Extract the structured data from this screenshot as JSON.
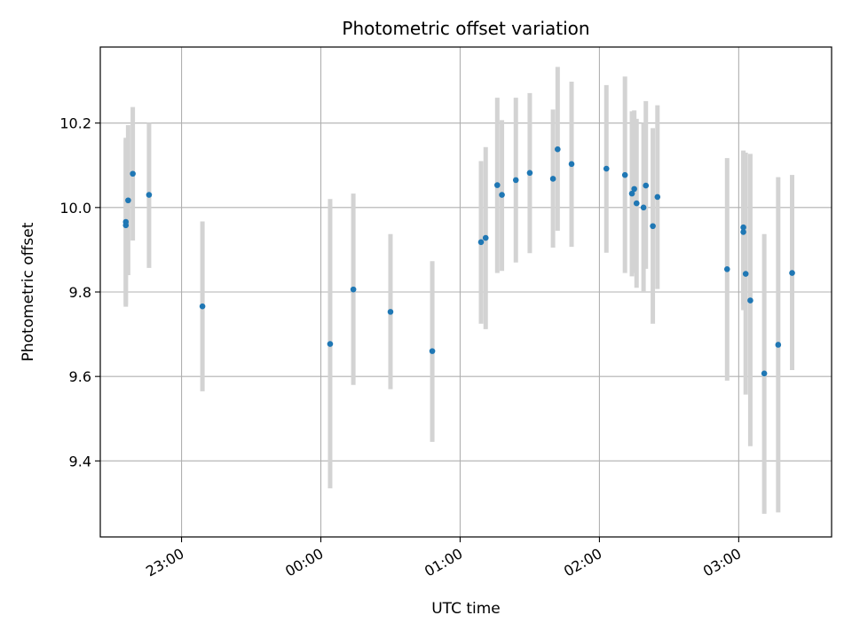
{
  "chart_data": {
    "type": "scatter",
    "title": "Photometric offset variation",
    "xlabel": "UTC time",
    "ylabel": "Photometric offset",
    "x_unit": "UTC time (HH:MM)",
    "x_ticks": [
      "23:00",
      "00:00",
      "01:00",
      "02:00",
      "03:00"
    ],
    "y_ticks": [
      "9.4",
      "9.6",
      "9.8",
      "10.0",
      "10.2"
    ],
    "xlim": [
      "22:25",
      "03:40"
    ],
    "ylim": [
      9.22,
      10.38
    ],
    "grid": true,
    "colors": {
      "point": "#1f77b4",
      "errorbar": "#d3d3d3",
      "grid": "#b0b0b0"
    },
    "points": [
      {
        "time": "22:36",
        "y": 9.958,
        "err_lo": 9.765,
        "err_hi": 10.16
      },
      {
        "time": "22:36",
        "y": 9.966,
        "err_lo": 9.77,
        "err_hi": 10.165
      },
      {
        "time": "22:37",
        "y": 10.017,
        "err_lo": 9.84,
        "err_hi": 10.195
      },
      {
        "time": "22:39",
        "y": 10.08,
        "err_lo": 9.922,
        "err_hi": 10.238
      },
      {
        "time": "22:46",
        "y": 10.03,
        "err_lo": 9.857,
        "err_hi": 10.2
      },
      {
        "time": "23:09",
        "y": 9.766,
        "err_lo": 9.565,
        "err_hi": 9.967
      },
      {
        "time": "00:04",
        "y": 9.677,
        "err_lo": 9.335,
        "err_hi": 10.02
      },
      {
        "time": "00:14",
        "y": 9.806,
        "err_lo": 9.58,
        "err_hi": 10.033
      },
      {
        "time": "00:30",
        "y": 9.753,
        "err_lo": 9.57,
        "err_hi": 9.937
      },
      {
        "time": "00:48",
        "y": 9.66,
        "err_lo": 9.445,
        "err_hi": 9.873
      },
      {
        "time": "01:09",
        "y": 9.918,
        "err_lo": 9.725,
        "err_hi": 10.11
      },
      {
        "time": "01:11",
        "y": 9.928,
        "err_lo": 9.712,
        "err_hi": 10.143
      },
      {
        "time": "01:16",
        "y": 10.053,
        "err_lo": 9.845,
        "err_hi": 10.26
      },
      {
        "time": "01:18",
        "y": 10.03,
        "err_lo": 9.85,
        "err_hi": 10.207
      },
      {
        "time": "01:24",
        "y": 10.065,
        "err_lo": 9.87,
        "err_hi": 10.26
      },
      {
        "time": "01:30",
        "y": 10.082,
        "err_lo": 9.892,
        "err_hi": 10.271
      },
      {
        "time": "01:40",
        "y": 10.068,
        "err_lo": 9.905,
        "err_hi": 10.232
      },
      {
        "time": "01:42",
        "y": 10.138,
        "err_lo": 9.945,
        "err_hi": 10.333
      },
      {
        "time": "01:48",
        "y": 10.103,
        "err_lo": 9.907,
        "err_hi": 10.298
      },
      {
        "time": "02:03",
        "y": 10.092,
        "err_lo": 9.893,
        "err_hi": 10.29
      },
      {
        "time": "02:11",
        "y": 10.077,
        "err_lo": 9.845,
        "err_hi": 10.31
      },
      {
        "time": "02:14",
        "y": 10.033,
        "err_lo": 9.837,
        "err_hi": 10.228
      },
      {
        "time": "02:15",
        "y": 10.044,
        "err_lo": 9.845,
        "err_hi": 10.23
      },
      {
        "time": "02:16",
        "y": 10.01,
        "err_lo": 9.81,
        "err_hi": 10.21
      },
      {
        "time": "02:19",
        "y": 10.0,
        "err_lo": 9.8,
        "err_hi": 10.2
      },
      {
        "time": "02:20",
        "y": 10.052,
        "err_lo": 9.855,
        "err_hi": 10.252
      },
      {
        "time": "02:23",
        "y": 9.956,
        "err_lo": 9.725,
        "err_hi": 10.188
      },
      {
        "time": "02:25",
        "y": 10.025,
        "err_lo": 9.807,
        "err_hi": 10.242
      },
      {
        "time": "02:55",
        "y": 9.854,
        "err_lo": 9.59,
        "err_hi": 10.117
      },
      {
        "time": "03:02",
        "y": 9.942,
        "err_lo": 9.757,
        "err_hi": 10.133
      },
      {
        "time": "03:02",
        "y": 9.953,
        "err_lo": 9.77,
        "err_hi": 10.135
      },
      {
        "time": "03:03",
        "y": 9.843,
        "err_lo": 9.557,
        "err_hi": 10.13
      },
      {
        "time": "03:05",
        "y": 9.78,
        "err_lo": 9.435,
        "err_hi": 10.127
      },
      {
        "time": "03:11",
        "y": 9.607,
        "err_lo": 9.275,
        "err_hi": 9.937
      },
      {
        "time": "03:17",
        "y": 9.675,
        "err_lo": 9.278,
        "err_hi": 10.072
      },
      {
        "time": "03:23",
        "y": 9.845,
        "err_lo": 9.615,
        "err_hi": 10.077
      }
    ]
  }
}
